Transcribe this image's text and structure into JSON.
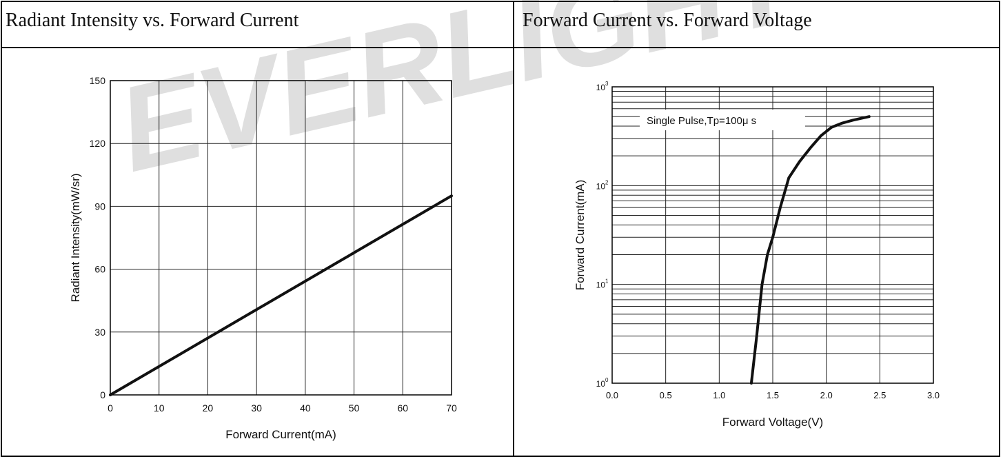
{
  "panels": {
    "left_title": "Radiant Intensity vs. Forward Current",
    "right_title": "Forward Current vs. Forward Voltage"
  },
  "watermark": {
    "text": "EVERLIGHT",
    "color": "#1e8fd6"
  },
  "chart_data": [
    {
      "type": "line",
      "xlabel": "Forward Current(mA)",
      "ylabel": "Radiant Intensity(mW/sr)",
      "xlim": [
        0,
        70
      ],
      "ylim": [
        0,
        150
      ],
      "xticks": [
        0,
        10,
        20,
        30,
        40,
        50,
        60,
        70
      ],
      "yticks": [
        0,
        30,
        60,
        90,
        120,
        150
      ],
      "xtick_labels": [
        "0",
        "10",
        "20",
        "30",
        "40",
        "50",
        "60",
        "70"
      ],
      "ytick_labels": [
        "0",
        "30",
        "60",
        "90",
        "120",
        "150"
      ],
      "grid": true,
      "series": [
        {
          "x": [
            0,
            70
          ],
          "y": [
            0,
            95
          ]
        }
      ]
    },
    {
      "type": "line",
      "xlabel": "Forward Voltage(V)",
      "ylabel": "Forward Current(mA)",
      "xlim": [
        0,
        3.0
      ],
      "ylim": [
        1,
        1000
      ],
      "yscale": "log",
      "xticks": [
        0,
        0.5,
        1.0,
        1.5,
        2.0,
        2.5,
        3.0
      ],
      "xtick_labels": [
        "0.0",
        "0.5",
        "1.0",
        "1.5",
        "2.0",
        "2.5",
        "3.0"
      ],
      "ytick_exponents": [
        "0",
        "1",
        "2",
        "3"
      ],
      "ytick_base": "10",
      "grid": true,
      "annotation": "Single Pulse,Tp=100μ s",
      "series": [
        {
          "x": [
            1.3,
            1.35,
            1.4,
            1.45,
            1.5,
            1.57,
            1.65,
            1.75,
            1.85,
            1.95,
            2.05,
            2.15,
            2.25,
            2.4
          ],
          "y": [
            1,
            3,
            10,
            20,
            30,
            60,
            120,
            175,
            240,
            320,
            390,
            430,
            460,
            500
          ]
        }
      ]
    }
  ]
}
